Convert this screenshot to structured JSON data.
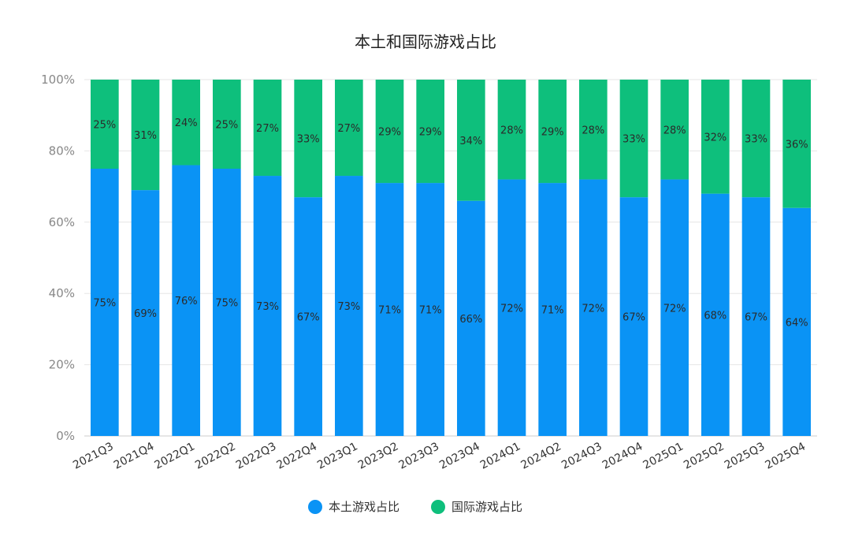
{
  "chart_data": {
    "type": "bar",
    "stacked": true,
    "title": "本土和国际游戏占比",
    "xlabel": "",
    "ylabel": "",
    "ylim": [
      0,
      100
    ],
    "yticks": [
      "0%",
      "20%",
      "40%",
      "60%",
      "80%",
      "100%"
    ],
    "categories": [
      "2021Q3",
      "2021Q4",
      "2022Q1",
      "2022Q2",
      "2022Q3",
      "2022Q4",
      "2023Q1",
      "2023Q2",
      "2023Q3",
      "2023Q4",
      "2024Q1",
      "2024Q2",
      "2024Q3",
      "2024Q4",
      "2025Q1",
      "2025Q2",
      "2025Q3",
      "2025Q4"
    ],
    "series": [
      {
        "name": "本土游戏占比",
        "color": "#0a93f5",
        "values": [
          75,
          69,
          76,
          75,
          73,
          67,
          73,
          71,
          71,
          66,
          72,
          71,
          72,
          67,
          72,
          68,
          67,
          64
        ]
      },
      {
        "name": "国际游戏占比",
        "color": "#0ebf7c",
        "values": [
          25,
          31,
          24,
          25,
          27,
          33,
          27,
          29,
          29,
          34,
          28,
          29,
          28,
          33,
          28,
          32,
          33,
          36
        ]
      }
    ],
    "legend_position": "bottom-center",
    "grid": true
  }
}
